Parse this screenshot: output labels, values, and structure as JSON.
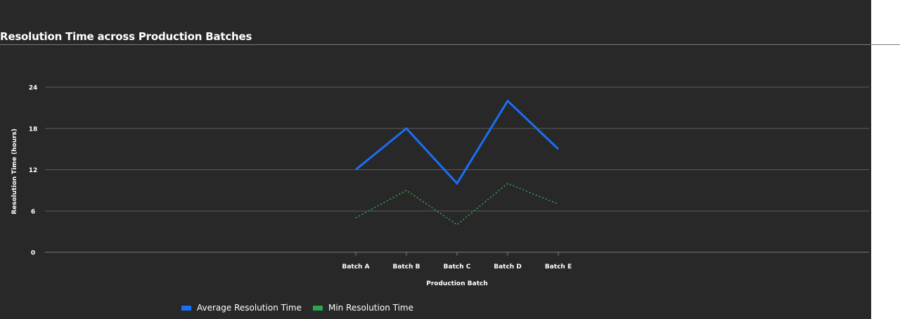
{
  "chart_data": {
    "type": "line",
    "title": "Resolution Time across Production Batches",
    "xlabel": "Production Batch",
    "ylabel": "Resolution Time (hours)",
    "categories": [
      "Batch A",
      "Batch B",
      "Batch C",
      "Batch D",
      "Batch E"
    ],
    "ylim": [
      0,
      24
    ],
    "yticks": [
      "0",
      "6",
      "12",
      "18",
      "24"
    ],
    "grid": true,
    "legend_position": "bottom-left",
    "series": [
      {
        "name": "Average Resolution Time",
        "values": [
          12,
          18,
          10,
          22,
          15
        ],
        "color": "#1a6ff5",
        "style": "solid"
      },
      {
        "name": "Min Resolution Time",
        "values": [
          5,
          9,
          4,
          10,
          7
        ],
        "color": "#2ea44f",
        "style": "dotted"
      }
    ]
  },
  "colors": {
    "background": "#282828",
    "gridline": "#5a5a5a",
    "text": "#ffffff"
  }
}
